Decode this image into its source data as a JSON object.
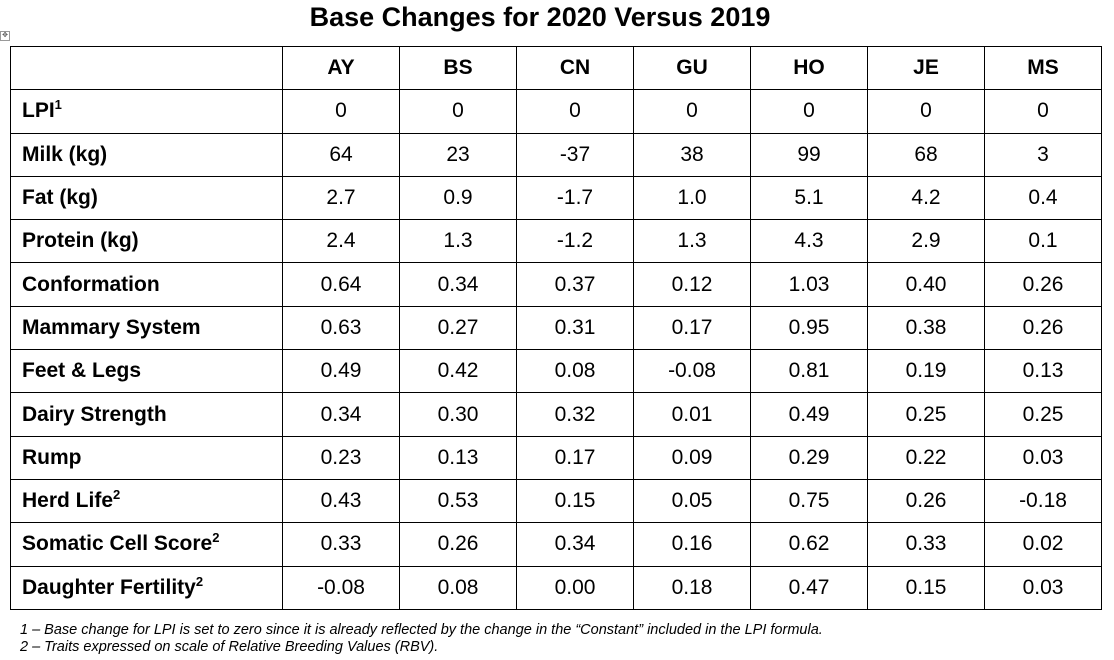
{
  "title": "Base Changes for 2020 Versus 2019",
  "table": {
    "columns": [
      "AY",
      "BS",
      "CN",
      "GU",
      "HO",
      "JE",
      "MS"
    ],
    "rows": [
      {
        "label": "LPI",
        "sup": "1",
        "values": [
          "0",
          "0",
          "0",
          "0",
          "0",
          "0",
          "0"
        ]
      },
      {
        "label": "Milk (kg)",
        "sup": "",
        "values": [
          "64",
          "23",
          "-37",
          "38",
          "99",
          "68",
          "3"
        ]
      },
      {
        "label": "Fat (kg)",
        "sup": "",
        "values": [
          "2.7",
          "0.9",
          "-1.7",
          "1.0",
          "5.1",
          "4.2",
          "0.4"
        ]
      },
      {
        "label": "Protein (kg)",
        "sup": "",
        "values": [
          "2.4",
          "1.3",
          "-1.2",
          "1.3",
          "4.3",
          "2.9",
          "0.1"
        ]
      },
      {
        "label": "Conformation",
        "sup": "",
        "values": [
          "0.64",
          "0.34",
          "0.37",
          "0.12",
          "1.03",
          "0.40",
          "0.26"
        ]
      },
      {
        "label": "Mammary System",
        "sup": "",
        "values": [
          "0.63",
          "0.27",
          "0.31",
          "0.17",
          "0.95",
          "0.38",
          "0.26"
        ]
      },
      {
        "label": "Feet & Legs",
        "sup": "",
        "values": [
          "0.49",
          "0.42",
          "0.08",
          "-0.08",
          "0.81",
          "0.19",
          "0.13"
        ]
      },
      {
        "label": "Dairy Strength",
        "sup": "",
        "values": [
          "0.34",
          "0.30",
          "0.32",
          "0.01",
          "0.49",
          "0.25",
          "0.25"
        ]
      },
      {
        "label": "Rump",
        "sup": "",
        "values": [
          "0.23",
          "0.13",
          "0.17",
          "0.09",
          "0.29",
          "0.22",
          "0.03"
        ]
      },
      {
        "label": "Herd Life",
        "sup": "2",
        "values": [
          "0.43",
          "0.53",
          "0.15",
          "0.05",
          "0.75",
          "0.26",
          "-0.18"
        ]
      },
      {
        "label": "Somatic Cell Score",
        "sup": "2",
        "values": [
          "0.33",
          "0.26",
          "0.34",
          "0.16",
          "0.62",
          "0.33",
          "0.02"
        ]
      },
      {
        "label": "Daughter Fertility",
        "sup": "2",
        "values": [
          "-0.08",
          "0.08",
          "0.00",
          "0.18",
          "0.47",
          "0.15",
          "0.03"
        ]
      }
    ]
  },
  "footnotes": [
    "1 – Base change for LPI is set to zero since it is already reflected by the change in the “Constant” included in the LPI formula.",
    "2 – Traits expressed on scale of Relative Breeding Values (RBV)."
  ],
  "icons": {
    "table_handle": "move-handle-icon"
  }
}
